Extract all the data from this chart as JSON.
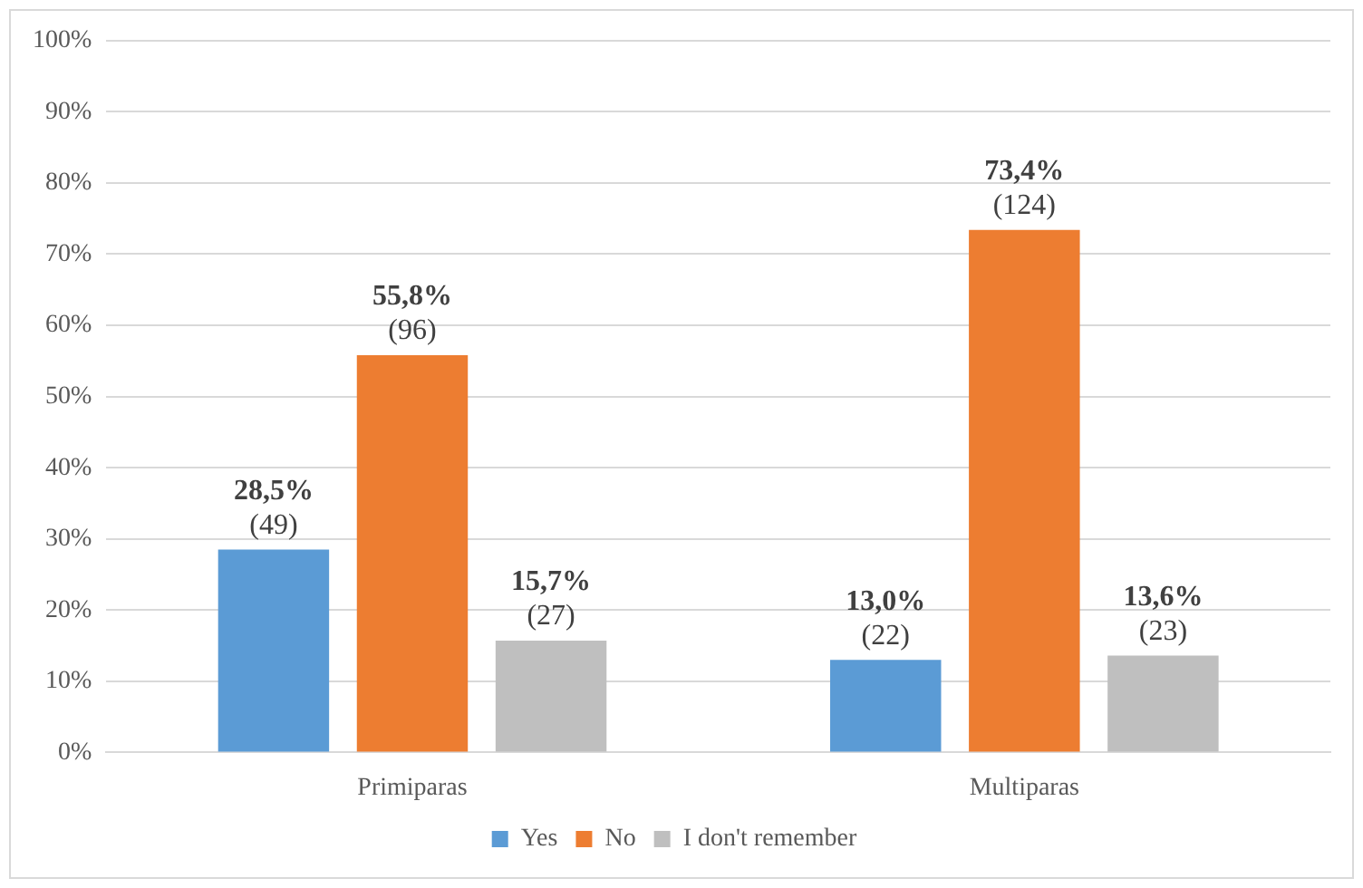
{
  "chart_data": {
    "type": "bar",
    "categories": [
      "Primiparas",
      "Multiparas"
    ],
    "series": [
      {
        "name": "Yes",
        "color": "#5b9bd5",
        "values": [
          28.5,
          13.0
        ],
        "value_labels": [
          "28,5% (49)",
          "13,0% (22)"
        ]
      },
      {
        "name": "No",
        "color": "#ed7d31",
        "values": [
          55.8,
          73.4
        ],
        "value_labels": [
          "55,8% (96)",
          "73,4% (124)"
        ]
      },
      {
        "name": "I don't remember",
        "color": "#bfbfbf",
        "values": [
          15.7,
          13.6
        ],
        "value_labels": [
          "15,7% (27)",
          "13,6% (23)"
        ]
      }
    ],
    "ylim": [
      0,
      100
    ],
    "yticks": [
      {
        "value": 0,
        "label": "0%"
      },
      {
        "value": 10,
        "label": "10%"
      },
      {
        "value": 20,
        "label": "20%"
      },
      {
        "value": 30,
        "label": "30%"
      },
      {
        "value": 40,
        "label": "40%"
      },
      {
        "value": 50,
        "label": "50%"
      },
      {
        "value": 60,
        "label": "60%"
      },
      {
        "value": 70,
        "label": "70%"
      },
      {
        "value": 80,
        "label": "80%"
      },
      {
        "value": 90,
        "label": "90%"
      },
      {
        "value": 100,
        "label": "100%"
      }
    ],
    "grid": "y",
    "legend": "bottom"
  }
}
